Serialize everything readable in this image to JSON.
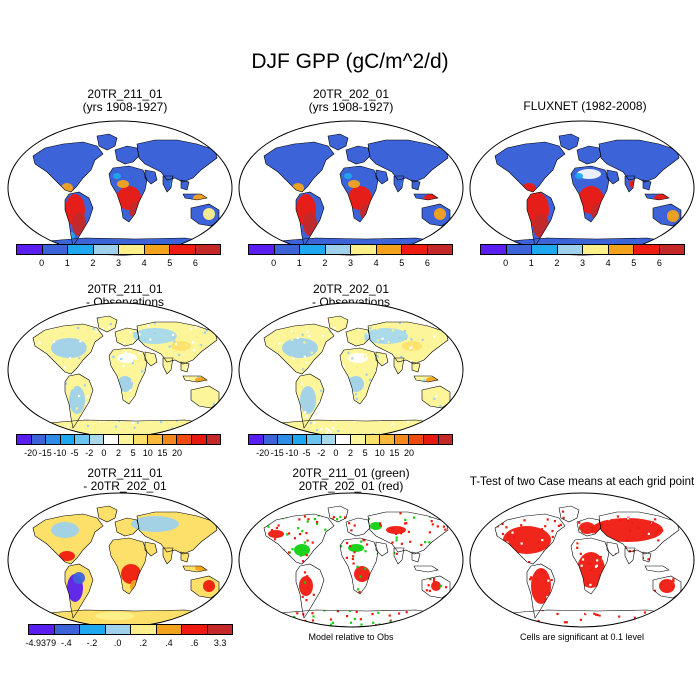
{
  "figure_title": "DJF GPP (gC/m^2/d)",
  "panels": [
    {
      "id": "p1",
      "title_line1": "20TR_211_01",
      "title_line2": "(yrs 1908-1927)",
      "scheme": "abs_model1"
    },
    {
      "id": "p2",
      "title_line1": "20TR_202_01",
      "title_line2": "(yrs 1908-1927)",
      "scheme": "abs_model2"
    },
    {
      "id": "p3",
      "title_line1": "FLUXNET (1982-2008)",
      "title_line2": "",
      "scheme": "abs_obs"
    },
    {
      "id": "p4",
      "title_line1": "20TR_211_01",
      "title_line2": "- Observations",
      "scheme": "diff_obs"
    },
    {
      "id": "p5",
      "title_line1": "20TR_202_01",
      "title_line2": "- Observations",
      "scheme": "diff_obs"
    },
    {
      "id": "p7",
      "title_line1": "20TR_211_01",
      "title_line2": "- 20TR_202_01",
      "scheme": "diff_case"
    },
    {
      "id": "p8",
      "title_line1": "20TR_211_01 (green)",
      "title_line2": "20TR_202_01 (red)",
      "scheme": "relative"
    },
    {
      "id": "p9",
      "title_line1": "T-Test of two Case means at each grid point",
      "title_line2": "",
      "scheme": "ttest"
    }
  ],
  "colorbars": {
    "absolute": {
      "colors": [
        "#5a1ff0",
        "#3d63d9",
        "#1fa7ef",
        "#9fd1ec",
        "#fdf08a",
        "#f3a21b",
        "#ef1a10",
        "#c42828"
      ],
      "labels": [
        "0",
        "1",
        "2",
        "3",
        "4",
        "5",
        "6"
      ]
    },
    "difference": {
      "colors": [
        "#5a1ff0",
        "#3d63d9",
        "#2f8ce6",
        "#1fa7ef",
        "#6cc4f1",
        "#a7d9ed",
        "#ffffff",
        "#fdf59a",
        "#fde06a",
        "#f9b939",
        "#f3891e",
        "#ef4a10",
        "#e5190f",
        "#c42828"
      ],
      "labels": [
        "-20",
        "-15",
        "-10",
        "-5",
        "-2",
        "0",
        "2",
        "5",
        "10",
        "15",
        "20"
      ]
    },
    "case_difference": {
      "colors": [
        "#5a1ff0",
        "#3d63d9",
        "#1fa7ef",
        "#9fd1ec",
        "#fdf08a",
        "#f3a21b",
        "#ef1a10",
        "#c42828"
      ],
      "labels": [
        "-4.9379",
        "-.4",
        "-.2",
        ".0",
        ".2",
        ".4",
        ".6",
        "3.3"
      ]
    }
  },
  "notes": {
    "relative": "Model relative to Obs",
    "ttest": "Cells are significant at 0.1 level"
  },
  "icons": {
    "map": "world-map-robinson-icon"
  }
}
